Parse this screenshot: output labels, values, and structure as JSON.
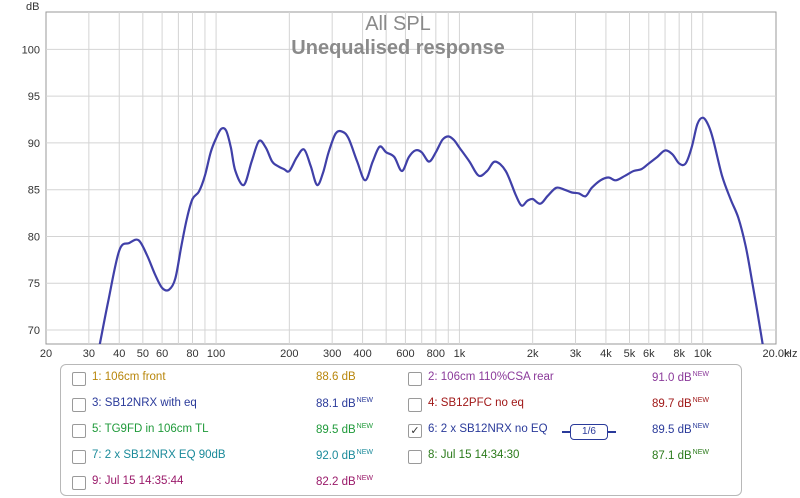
{
  "chart_data": {
    "type": "line",
    "title": "All SPL",
    "subtitle": "Unequalised response",
    "ylabel": "dB",
    "xlabel": "Hz",
    "xscale": "log",
    "xlim": [
      20,
      20000
    ],
    "ylim": [
      68.5,
      104
    ],
    "grid": true,
    "x_ticks": [
      20,
      30,
      40,
      50,
      60,
      80,
      100,
      200,
      300,
      400,
      600,
      800,
      1000,
      2000,
      3000,
      4000,
      5000,
      6000,
      8000,
      10000,
      20000
    ],
    "x_tick_labels": [
      "20",
      "30",
      "40",
      "50",
      "60",
      "80",
      "100",
      "200",
      "300",
      "400",
      "600",
      "800",
      "1k",
      "2k",
      "3k",
      "4k",
      "5k",
      "6k",
      "8k",
      "10k",
      "20.0k"
    ],
    "y_ticks": [
      70,
      75,
      80,
      85,
      90,
      95,
      100
    ],
    "y_tick_labels": [
      "70",
      "75",
      "80",
      "85",
      "90",
      "95",
      "100"
    ],
    "series": [
      {
        "name": "6: 2 x SB12NRX no EQ",
        "color": "#4040a8",
        "x": [
          33,
          36,
          40,
          44,
          48,
          52,
          56,
          60,
          64,
          68,
          72,
          76,
          80,
          85,
          90,
          95,
          100,
          105,
          110,
          115,
          120,
          130,
          140,
          150,
          160,
          170,
          180,
          190,
          200,
          215,
          230,
          245,
          260,
          275,
          290,
          310,
          330,
          350,
          380,
          410,
          440,
          470,
          500,
          540,
          580,
          620,
          660,
          700,
          750,
          800,
          850,
          900,
          950,
          1000,
          1100,
          1200,
          1300,
          1400,
          1550,
          1700,
          1800,
          1900,
          2000,
          2150,
          2300,
          2500,
          2700,
          2900,
          3100,
          3300,
          3500,
          3800,
          4100,
          4400,
          4800,
          5200,
          5600,
          6000,
          6500,
          7000,
          7500,
          8000,
          8500,
          9000,
          9500,
          10000,
          10500,
          11000,
          12000,
          13000,
          14000,
          15000,
          16000,
          17000,
          18000
        ],
        "y": [
          68.0,
          73.0,
          78.5,
          79.3,
          79.6,
          78.0,
          76.0,
          74.5,
          74.3,
          75.5,
          79.0,
          82.0,
          84.0,
          84.8,
          86.5,
          89.0,
          90.5,
          91.5,
          91.3,
          89.5,
          87.0,
          85.5,
          88.0,
          90.2,
          89.5,
          88.0,
          87.5,
          87.2,
          87.0,
          88.5,
          89.3,
          87.5,
          85.5,
          86.8,
          89.0,
          91.0,
          91.2,
          90.5,
          88.0,
          86.0,
          88.0,
          89.6,
          89.0,
          88.5,
          87.0,
          88.5,
          89.2,
          89.0,
          88.0,
          89.0,
          90.3,
          90.7,
          90.3,
          89.5,
          88.0,
          86.5,
          87.0,
          88.0,
          87.0,
          84.5,
          83.3,
          83.8,
          84.0,
          83.5,
          84.3,
          85.2,
          85.0,
          84.7,
          84.6,
          84.3,
          85.2,
          86.0,
          86.3,
          86.0,
          86.5,
          87.0,
          87.2,
          87.8,
          88.5,
          89.2,
          88.8,
          87.8,
          87.8,
          89.5,
          92.0,
          92.7,
          92.0,
          90.5,
          86.5,
          84.0,
          82.0,
          79.0,
          75.0,
          71.0,
          67.0
        ]
      }
    ],
    "legend": [
      {
        "label": "1: 106cm front",
        "value": "88.6 dB",
        "new": "",
        "checked": false,
        "label_color": "#b8860b",
        "value_color": "#b8860b"
      },
      {
        "label": "2: 106cm 110%CSA rear",
        "value": "91.0 dB",
        "new": "NEW",
        "checked": false,
        "label_color": "#8b3a9a",
        "value_color": "#8b3a9a"
      },
      {
        "label": "3: SB12NRX with eq",
        "value": "88.1 dB",
        "new": "NEW",
        "checked": false,
        "label_color": "#2a3a9a",
        "value_color": "#2a3a9a"
      },
      {
        "label": "4: SB12PFC no eq",
        "value": "89.7 dB",
        "new": "NEW",
        "checked": false,
        "label_color": "#a01818",
        "value_color": "#a01818"
      },
      {
        "label": "5: TG9FD in 106cm TL",
        "value": "89.5 dB",
        "new": "NEW",
        "checked": false,
        "label_color": "#1f9a3a",
        "value_color": "#1f9a3a"
      },
      {
        "label": "6: 2 x SB12NRX no EQ",
        "value": "89.5 dB",
        "new": "NEW",
        "checked": true,
        "label_color": "#2a3a9a",
        "value_color": "#2a3a9a"
      },
      {
        "label": "7: 2 x SB12NRX EQ 90dB",
        "value": "92.0 dB",
        "new": "NEW",
        "checked": false,
        "label_color": "#1a8a9a",
        "value_color": "#1a8a9a"
      },
      {
        "label": "8: Jul 15 14:34:30",
        "value": "87.1 dB",
        "new": "NEW",
        "checked": false,
        "label_color": "#2a7a1a",
        "value_color": "#2a7a1a"
      },
      {
        "label": "9: Jul 15 14:35:44",
        "value": "82.2 dB",
        "new": "NEW",
        "checked": false,
        "label_color": "#9a1a6a",
        "value_color": "#9a1a6a"
      }
    ],
    "smoothing": "1/6"
  },
  "colors": {
    "grid": "#d4d4d4",
    "axis": "#999999",
    "text": "#333333"
  }
}
